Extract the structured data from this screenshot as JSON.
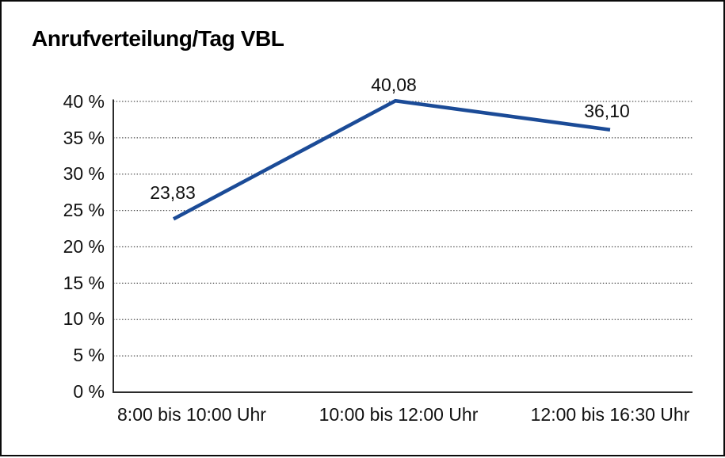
{
  "window": {
    "background_color": "#ffffff",
    "frame_border_color": "#0a0a0a"
  },
  "chart_data": {
    "type": "line",
    "title": "Anrufverteilung/Tag VBL",
    "categories": [
      "8:00 bis 10:00 Uhr",
      "10:00 bis 12:00 Uhr",
      "12:00 bis 16:30 Uhr"
    ],
    "series": [
      {
        "values": [
          23.83,
          40.08,
          36.1
        ],
        "color": "#1B4B97"
      }
    ],
    "value_labels": [
      "23,83",
      "40,08",
      "36,10"
    ],
    "y_tick_labels": [
      "40 %",
      "35 %",
      "30 %",
      "25 %",
      "20 %",
      "15 %",
      "10 %",
      "5 %",
      "0 %"
    ],
    "ylim": [
      0,
      40
    ],
    "y_tick_step": 5,
    "xlabel": "",
    "ylabel": "",
    "grid": "horizontal-dotted",
    "legend": "none",
    "axis_color": "#2b2b2b",
    "gridline_color": "#4d4d4d"
  }
}
